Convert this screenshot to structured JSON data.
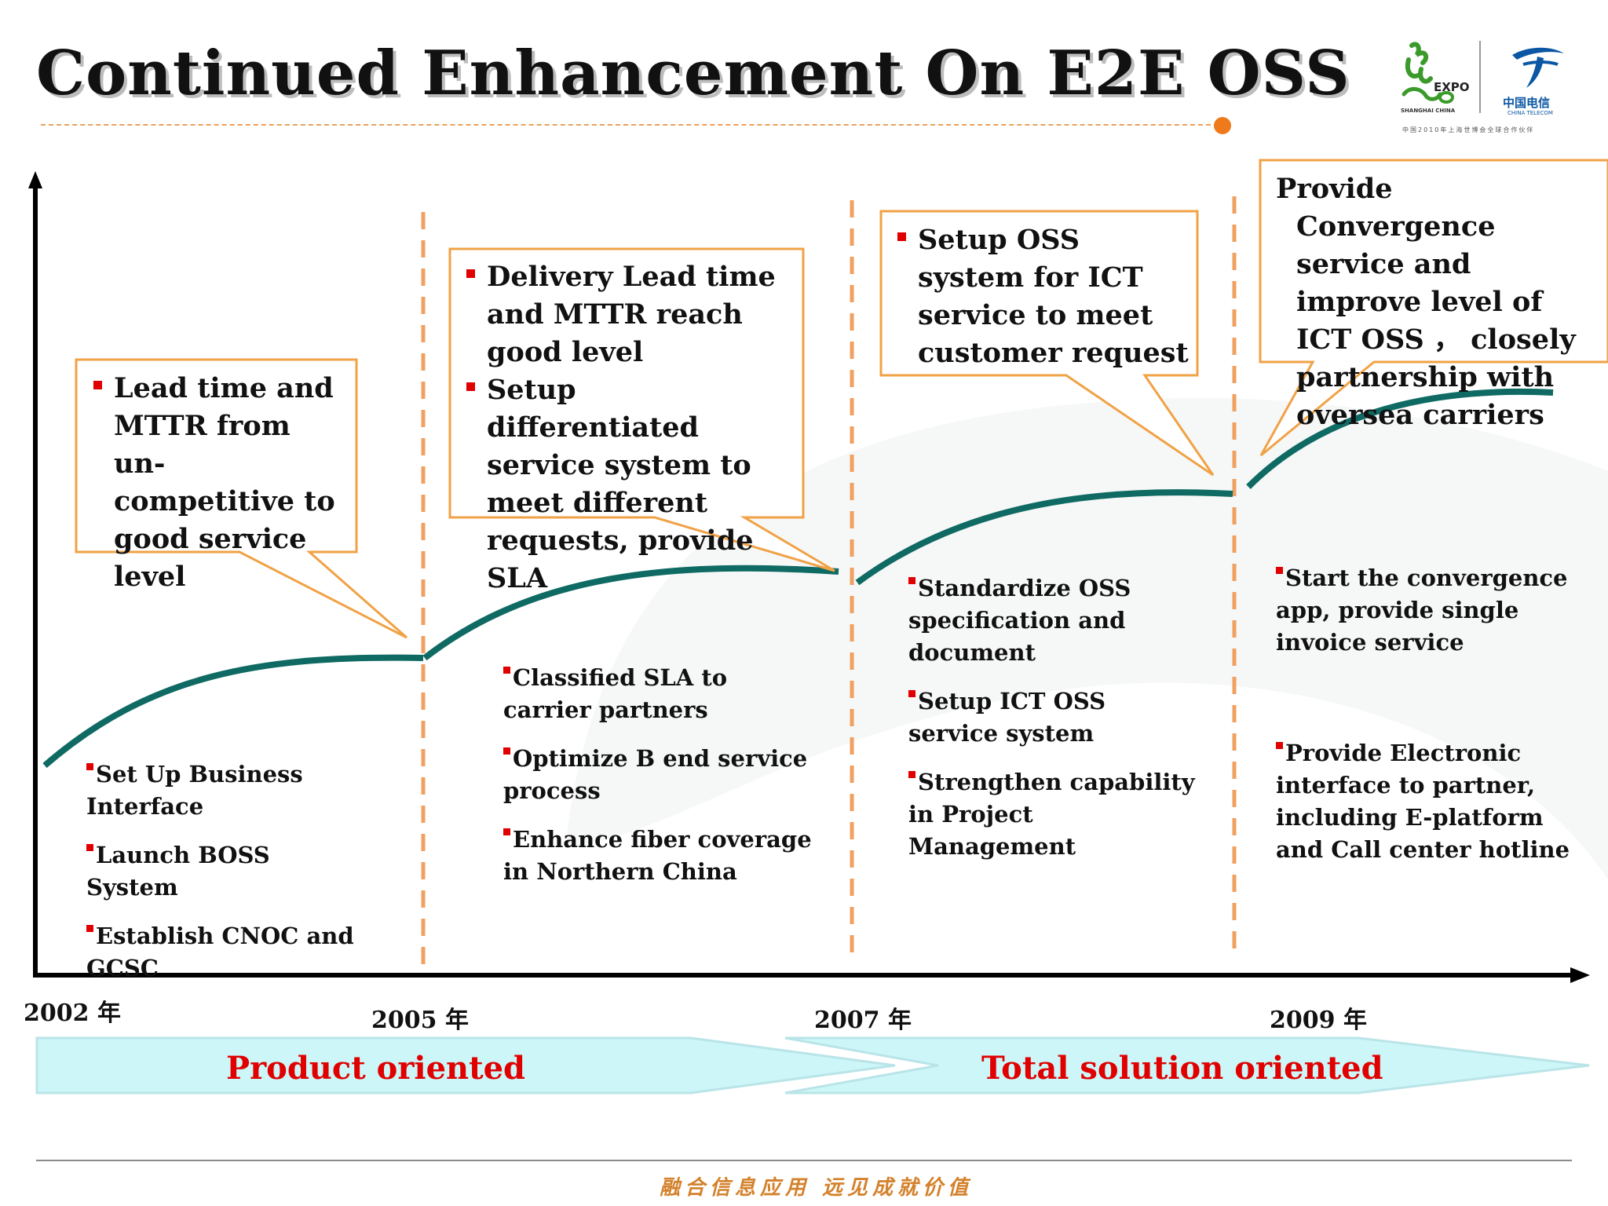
{
  "title": "Continued Enhancement On E2E OSS",
  "logos": {
    "expo_word": "EXPO",
    "expo_sub": "SHANGHAI CHINA",
    "ct_cn": "中国电信",
    "ct_en": "CHINA TELECOM",
    "caption": "中国2010年上海世博会全球合作伙伴"
  },
  "callouts": [
    {
      "items": [
        "Lead time and MTTR from un-competitive to good service level"
      ]
    },
    {
      "items": [
        "Delivery Lead time and MTTR reach good level",
        "Setup differentiated service system to meet different requests, provide SLA"
      ]
    },
    {
      "items": [
        "Setup OSS system for ICT service to meet customer request"
      ]
    },
    {
      "text": "Provide Convergence service and improve level of ICT OSS ， closely partnership with oversea carriers"
    }
  ],
  "phases": [
    {
      "bullets": [
        "Set Up Business Interface",
        "Launch BOSS System",
        "Establish CNOC and GCSC"
      ]
    },
    {
      "bullets": [
        "Classified SLA to carrier partners",
        "Optimize B end service process",
        "Enhance fiber coverage in Northern China"
      ]
    },
    {
      "bullets": [
        "Standardize OSS specification and document",
        "Setup ICT OSS service system",
        "Strengthen capability in Project Management"
      ]
    },
    {
      "bullets": [
        "Start the convergence app, provide single invoice service",
        "Provide Electronic interface to partner, including E-platform and Call center hotline"
      ]
    }
  ],
  "years": [
    "2002 年",
    "2005 年",
    "2007 年",
    "2009 年"
  ],
  "orientation": {
    "product": "Product oriented",
    "solution": "Total solution oriented"
  },
  "footer": {
    "slogan": "融合信息应用 远见成就价值"
  },
  "colors": {
    "curve": "#0e6a62",
    "callout_border": "#f0a246",
    "divider": "#f0a060",
    "bullet": "#e00000",
    "arrow_fill": "#cdf6f8",
    "phase_text": "#e00000"
  }
}
